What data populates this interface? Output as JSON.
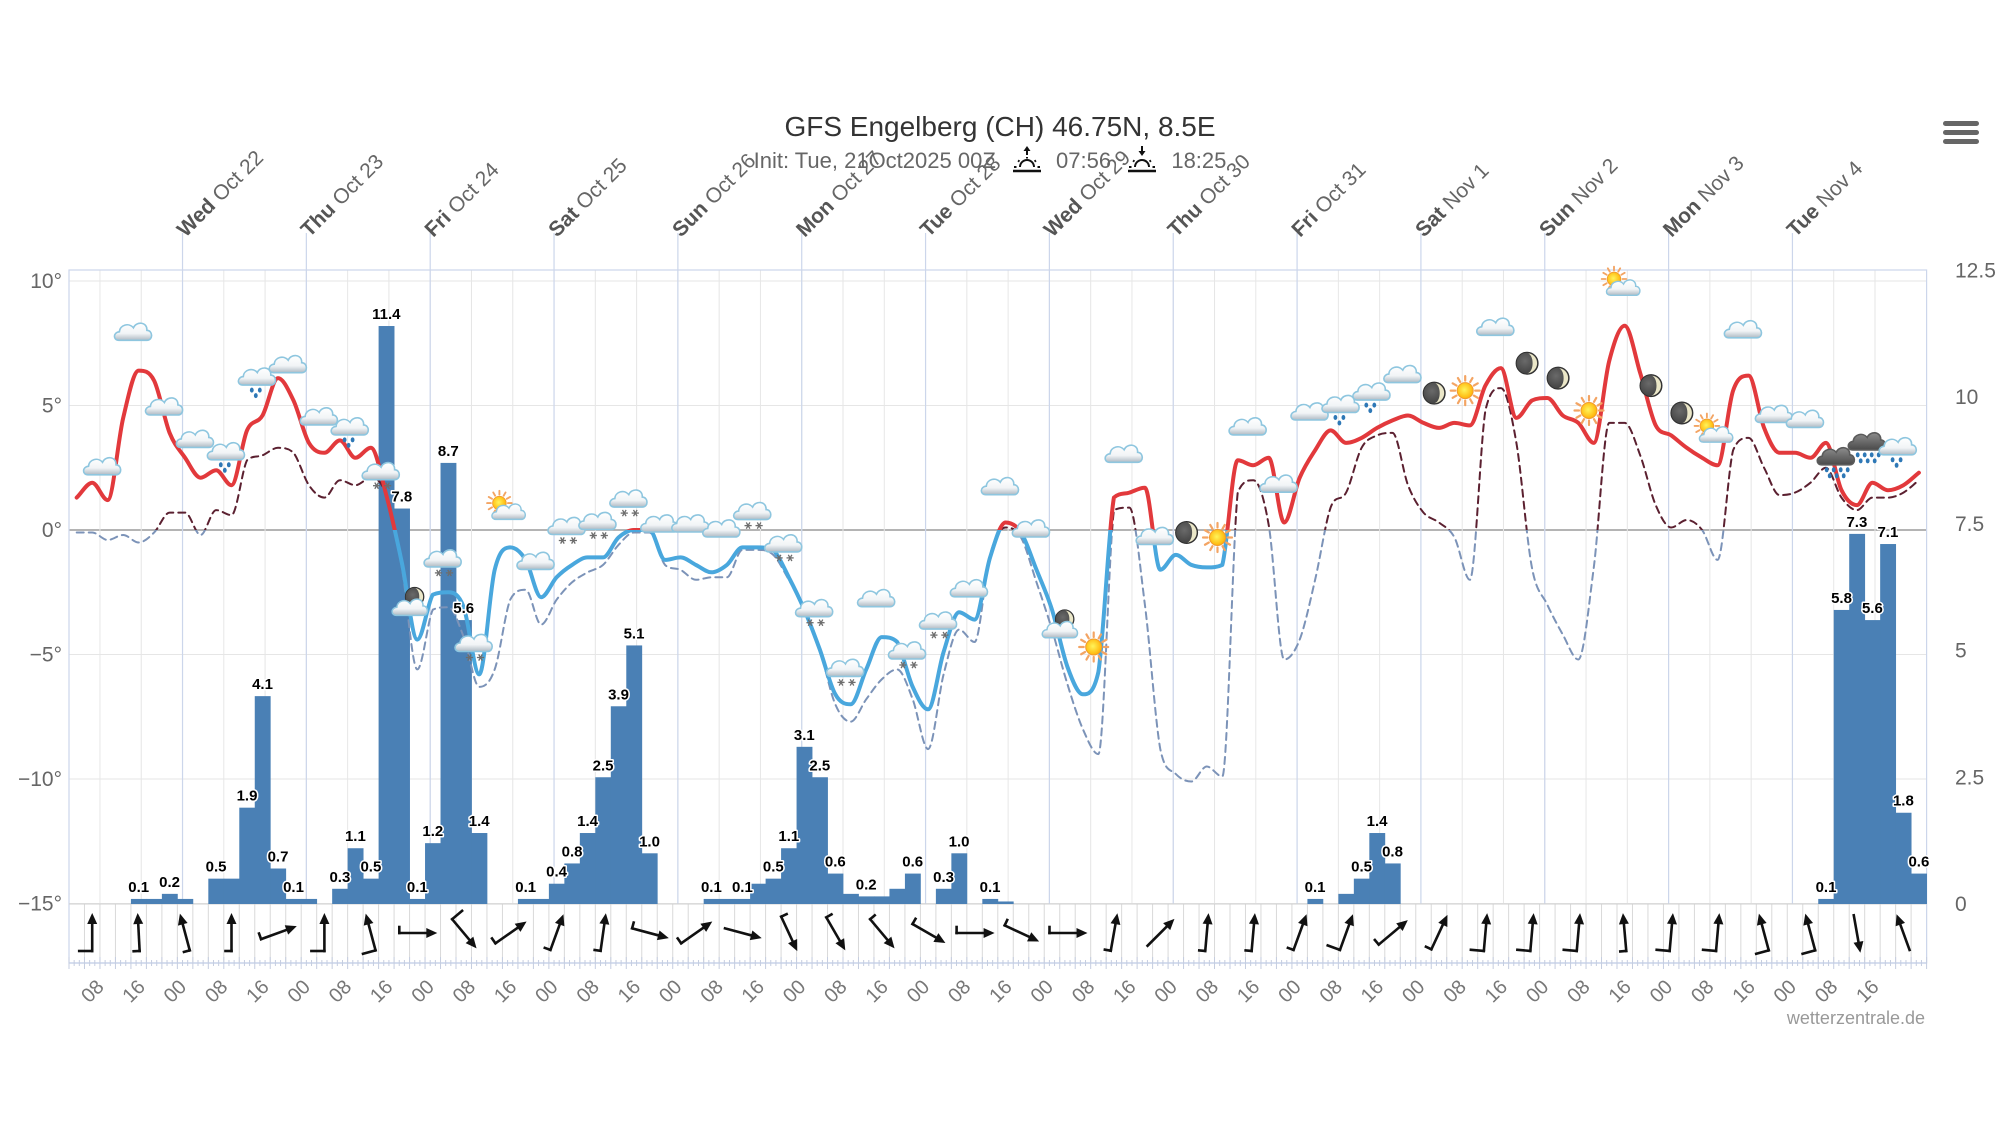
{
  "header": {
    "title": "GFS Engelberg (CH) 46.75N, 8.5E",
    "init": "Init: Tue, 21Oct2025 00Z",
    "sunrise_time": "07:56",
    "sunset_time": "18:25",
    "sunrise_icon": "sunrise-icon",
    "sunset_icon": "sunset-icon"
  },
  "menu": {
    "icon": "hamburger-menu-icon"
  },
  "credits": "wetterzentrale.de",
  "chart_data": {
    "type": "line",
    "title": "GFS Engelberg (CH) 46.75N, 8.5E",
    "legend": "none",
    "grid": true,
    "x": {
      "start": "Oct 21 02:00",
      "step_hours": 3,
      "count": 120,
      "tick_first_hour": 6,
      "tick_step_hours": 8,
      "tick_labels": [
        "08",
        "16",
        "00",
        "08",
        "16",
        "00",
        "08",
        "16",
        "00",
        "08",
        "16",
        "00",
        "08",
        "16",
        "00",
        "08",
        "16",
        "00",
        "08",
        "16",
        "00",
        "08",
        "16",
        "00",
        "08",
        "16",
        "00",
        "08",
        "16",
        "00",
        "08",
        "16",
        "00",
        "08",
        "16",
        "00",
        "08",
        "16",
        "00",
        "08",
        "16",
        "00",
        "08",
        "16"
      ],
      "day_first_hour": 22,
      "day_labels": [
        {
          "day": "Wed",
          "date": "Oct 22"
        },
        {
          "day": "Thu",
          "date": "Oct 23"
        },
        {
          "day": "Fri",
          "date": "Oct 24"
        },
        {
          "day": "Sat",
          "date": "Oct 25"
        },
        {
          "day": "Sun",
          "date": "Oct 26"
        },
        {
          "day": "Mon",
          "date": "Oct 27"
        },
        {
          "day": "Tue",
          "date": "Oct 28"
        },
        {
          "day": "Wed",
          "date": "Oct 29"
        },
        {
          "day": "Thu",
          "date": "Oct 30"
        },
        {
          "day": "Fri",
          "date": "Oct 31"
        },
        {
          "day": "Sat",
          "date": "Nov 1"
        },
        {
          "day": "Sun",
          "date": "Nov 2"
        },
        {
          "day": "Mon",
          "date": "Nov 3"
        },
        {
          "day": "Tue",
          "date": "Nov 4"
        }
      ]
    },
    "y_left": {
      "range": [
        -15,
        10
      ],
      "step": 5,
      "unit": "°C",
      "tick_labels": [
        "10°",
        "5°",
        "0°",
        "−5°",
        "−10°",
        "−15°"
      ]
    },
    "y_right": {
      "range": [
        0,
        12.5
      ],
      "step": 2.5,
      "unit": "mm",
      "tick_labels": [
        "12.5",
        "10",
        "7.5",
        "5",
        "2.5",
        "0"
      ]
    },
    "series": [
      {
        "id": "temperature-solid",
        "type": "line",
        "axis": "left",
        "style": "solid",
        "color_above_zero": "#e2393c",
        "color_below_zero": "#49a7dd",
        "values": [
          1.3,
          1.9,
          1.2,
          4.5,
          6.4,
          6.0,
          3.9,
          2.9,
          2.1,
          2.4,
          1.8,
          4.0,
          4.6,
          6.1,
          5.2,
          3.5,
          3.1,
          3.6,
          2.9,
          3.3,
          1.4,
          -1.3,
          -4.4,
          -2.6,
          -2.5,
          -3.1,
          -5.8,
          -1.6,
          -0.7,
          -1.2,
          -2.7,
          -1.9,
          -1.4,
          -1.1,
          -1.1,
          -0.3,
          0.0,
          0.0,
          -1.2,
          -1.1,
          -1.4,
          -1.7,
          -1.4,
          -0.7,
          -0.7,
          -0.8,
          -1.9,
          -3.2,
          -4.8,
          -6.6,
          -7.0,
          -5.6,
          -4.3,
          -4.5,
          -6.3,
          -7.2,
          -4.9,
          -3.3,
          -3.6,
          -1.1,
          0.3,
          -0.1,
          -1.6,
          -3.2,
          -5.5,
          -6.6,
          -5.7,
          1.3,
          1.5,
          1.7,
          -1.6,
          -1.0,
          -1.4,
          -1.5,
          -1.4,
          2.8,
          2.6,
          2.9,
          0.3,
          2.1,
          3.2,
          4.0,
          3.5,
          3.7,
          4.1,
          4.4,
          4.6,
          4.3,
          4.1,
          4.3,
          4.2,
          5.8,
          6.5,
          4.5,
          5.2,
          5.3,
          4.6,
          4.3,
          3.5,
          6.8,
          8.2,
          6.3,
          4.2,
          3.8,
          3.3,
          2.9,
          2.6,
          5.6,
          6.2,
          4.1,
          3.1,
          3.1,
          2.9,
          3.5,
          1.6,
          1.0,
          1.9,
          1.6,
          1.8,
          2.3
        ]
      },
      {
        "id": "temperature-dashed",
        "type": "line",
        "axis": "left",
        "style": "dashed",
        "color_above_zero": "#5b2030",
        "color_below_zero": "#7c93b8",
        "values": [
          -0.1,
          -0.1,
          -0.4,
          -0.2,
          -0.5,
          -0.1,
          0.7,
          0.7,
          -0.2,
          0.8,
          0.6,
          2.8,
          3.0,
          3.3,
          3.1,
          1.8,
          1.3,
          2.0,
          1.8,
          2.1,
          1.4,
          -1.5,
          -5.6,
          -3.2,
          -3.1,
          -4.3,
          -6.3,
          -5.6,
          -2.8,
          -2.4,
          -3.8,
          -2.8,
          -2.1,
          -1.7,
          -1.4,
          -0.6,
          -0.1,
          -0.1,
          -1.4,
          -1.6,
          -2.0,
          -1.9,
          -1.9,
          -0.8,
          -0.8,
          -1.0,
          -2.0,
          -3.1,
          -4.8,
          -7.0,
          -7.7,
          -6.8,
          -6.0,
          -5.6,
          -6.8,
          -8.8,
          -5.8,
          -4.0,
          -4.5,
          -1.0,
          0.1,
          -0.3,
          -2.1,
          -4.0,
          -6.2,
          -8.0,
          -9.0,
          0.8,
          0.9,
          -3.0,
          -8.8,
          -9.8,
          -10.1,
          -9.5,
          -9.9,
          1.5,
          2.0,
          0.2,
          -5.2,
          -4.4,
          -2.0,
          0.9,
          1.5,
          3.3,
          3.8,
          3.9,
          1.8,
          0.7,
          0.3,
          -0.3,
          -2.0,
          4.8,
          5.7,
          3.5,
          -1.5,
          -3.0,
          -4.2,
          -5.2,
          -1.5,
          4.3,
          4.3,
          3.0,
          1.0,
          0.1,
          0.4,
          0.0,
          -1.2,
          3.2,
          3.7,
          2.5,
          1.4,
          1.5,
          1.9,
          2.5,
          1.3,
          0.8,
          1.3,
          1.3,
          1.5,
          2.0
        ]
      },
      {
        "id": "precipitation",
        "type": "bar",
        "axis": "right",
        "color": "#4a80b5",
        "values": [
          0,
          0,
          0,
          0,
          0.1,
          0.1,
          0.2,
          0.1,
          0,
          0.5,
          0.5,
          1.9,
          4.1,
          0.7,
          0.1,
          0.1,
          0,
          0.3,
          1.1,
          0.5,
          11.4,
          7.8,
          0.1,
          1.2,
          8.7,
          5.6,
          1.4,
          0,
          0,
          0.1,
          0.1,
          0.4,
          0.8,
          1.4,
          2.5,
          3.9,
          5.1,
          1.0,
          0,
          0,
          0,
          0.1,
          0.1,
          0.1,
          0.4,
          0.5,
          1.1,
          3.1,
          2.5,
          0.6,
          0.2,
          0.15,
          0.15,
          0.3,
          0.6,
          0,
          0.3,
          1.0,
          0,
          0.1,
          0.05,
          0,
          0,
          0,
          0,
          0,
          0,
          0,
          0,
          0,
          0,
          0,
          0,
          0,
          0,
          0,
          0,
          0,
          0,
          0,
          0.1,
          0,
          0.2,
          0.5,
          1.4,
          0.8,
          0,
          0,
          0,
          0,
          0,
          0,
          0,
          0,
          0,
          0,
          0,
          0,
          0,
          0,
          0,
          0,
          0,
          0,
          0,
          0,
          0,
          0,
          0,
          0,
          0,
          0,
          0,
          0.1,
          5.8,
          7.3,
          5.6,
          7.1,
          1.8,
          0.6
        ],
        "labels": [
          {
            "index": 4,
            "text": "0.1"
          },
          {
            "index": 6,
            "text": "0.2"
          },
          {
            "index": 9,
            "text": "0.5"
          },
          {
            "index": 11,
            "text": "1.9"
          },
          {
            "index": 12,
            "text": "4.1"
          },
          {
            "index": 13,
            "text": "0.7"
          },
          {
            "index": 14,
            "text": "0.1"
          },
          {
            "index": 17,
            "text": "0.3"
          },
          {
            "index": 18,
            "text": "1.1"
          },
          {
            "index": 19,
            "text": "0.5"
          },
          {
            "index": 20,
            "text": "11.4"
          },
          {
            "index": 21,
            "text": "7.8"
          },
          {
            "index": 22,
            "text": "0.1"
          },
          {
            "index": 23,
            "text": "1.2"
          },
          {
            "index": 24,
            "text": "8.7"
          },
          {
            "index": 25,
            "text": "5.6"
          },
          {
            "index": 26,
            "text": "1.4"
          },
          {
            "index": 29,
            "text": "0.1"
          },
          {
            "index": 31,
            "text": "0.4"
          },
          {
            "index": 32,
            "text": "0.8"
          },
          {
            "index": 33,
            "text": "1.4"
          },
          {
            "index": 34,
            "text": "2.5"
          },
          {
            "index": 35,
            "text": "3.9"
          },
          {
            "index": 36,
            "text": "5.1"
          },
          {
            "index": 37,
            "text": "1.0"
          },
          {
            "index": 41,
            "text": "0.1"
          },
          {
            "index": 43,
            "text": "0.1"
          },
          {
            "index": 45,
            "text": "0.5"
          },
          {
            "index": 46,
            "text": "1.1"
          },
          {
            "index": 47,
            "text": "3.1"
          },
          {
            "index": 48,
            "text": "2.5"
          },
          {
            "index": 49,
            "text": "0.6"
          },
          {
            "index": 51,
            "text": "0.2"
          },
          {
            "index": 54,
            "text": "0.6"
          },
          {
            "index": 56,
            "text": "0.3"
          },
          {
            "index": 57,
            "text": "1.0"
          },
          {
            "index": 59,
            "text": "0.1"
          },
          {
            "index": 80,
            "text": "0.1"
          },
          {
            "index": 83,
            "text": "0.5"
          },
          {
            "index": 84,
            "text": "1.4"
          },
          {
            "index": 85,
            "text": "0.8"
          },
          {
            "index": 113,
            "text": "0.1"
          },
          {
            "index": 114,
            "text": "5.8"
          },
          {
            "index": 115,
            "text": "7.3"
          },
          {
            "index": 116,
            "text": "5.6"
          },
          {
            "index": 117,
            "text": "7.1"
          },
          {
            "index": 118,
            "text": "1.8"
          },
          {
            "index": 119,
            "text": "0.6"
          }
        ]
      }
    ],
    "wind": {
      "first_index": 1,
      "every_n_steps": 3,
      "arrows": [
        {
          "deg": 0,
          "barb": "full"
        },
        {
          "deg": -3,
          "barb": "half"
        },
        {
          "deg": -15,
          "barb": "half"
        },
        {
          "deg": 0,
          "barb": "half"
        },
        {
          "deg": 70,
          "barb": "half"
        },
        {
          "deg": 0,
          "barb": "full"
        },
        {
          "deg": -15,
          "barb": "full"
        },
        {
          "deg": 90,
          "barb": "half"
        },
        {
          "deg": 140,
          "barb": "full"
        },
        {
          "deg": 55,
          "barb": "half"
        },
        {
          "deg": 20,
          "barb": "half"
        },
        {
          "deg": 8,
          "barb": "half"
        },
        {
          "deg": 105,
          "barb": "half"
        },
        {
          "deg": 55,
          "barb": "half"
        },
        {
          "deg": 105,
          "barb": "none"
        },
        {
          "deg": 155,
          "barb": "half"
        },
        {
          "deg": 150,
          "barb": "half"
        },
        {
          "deg": 140,
          "barb": "half"
        },
        {
          "deg": 120,
          "barb": "half"
        },
        {
          "deg": 90,
          "barb": "half"
        },
        {
          "deg": 115,
          "barb": "half"
        },
        {
          "deg": 90,
          "barb": "half"
        },
        {
          "deg": 10,
          "barb": "half"
        },
        {
          "deg": 45,
          "barb": "none"
        },
        {
          "deg": 5,
          "barb": "half"
        },
        {
          "deg": 5,
          "barb": "half"
        },
        {
          "deg": 20,
          "barb": "half"
        },
        {
          "deg": 20,
          "barb": "full"
        },
        {
          "deg": 50,
          "barb": "half"
        },
        {
          "deg": 25,
          "barb": "half"
        },
        {
          "deg": 5,
          "barb": "full"
        },
        {
          "deg": 5,
          "barb": "full"
        },
        {
          "deg": 5,
          "barb": "full"
        },
        {
          "deg": -5,
          "barb": "half"
        },
        {
          "deg": 5,
          "barb": "full"
        },
        {
          "deg": 5,
          "barb": "full"
        },
        {
          "deg": -15,
          "barb": "full"
        },
        {
          "deg": -15,
          "barb": "full"
        },
        {
          "deg": 170,
          "barb": "none"
        },
        {
          "deg": -20,
          "barb": "none"
        }
      ]
    },
    "weather_icons": {
      "first_hour": 6,
      "step_hours": 6,
      "items": [
        {
          "icon": "cloud",
          "temp": 2.5
        },
        {
          "icon": "cloud",
          "temp": 7.9
        },
        {
          "icon": "cloud",
          "temp": 4.9
        },
        {
          "icon": "cloud",
          "temp": 3.6
        },
        {
          "icon": "cloud-rain",
          "temp": 3.1
        },
        {
          "icon": "cloud-rain",
          "temp": 6.1
        },
        {
          "icon": "cloud",
          "temp": 6.6
        },
        {
          "icon": "cloud",
          "temp": 4.5
        },
        {
          "icon": "cloud-rain",
          "temp": 4.1
        },
        {
          "icon": "cloud-snow",
          "temp": 2.3
        },
        {
          "icon": "moon-cloud",
          "temp": -3.0
        },
        {
          "icon": "cloud-snow",
          "temp": -1.2
        },
        {
          "icon": "cloud-snow",
          "temp": -4.6
        },
        {
          "icon": "sun-cloud",
          "temp": 0.8
        },
        {
          "icon": "cloud",
          "temp": -1.3
        },
        {
          "icon": "cloud-snow",
          "temp": 0.1
        },
        {
          "icon": "cloud-snow",
          "temp": 0.3
        },
        {
          "icon": "cloud-snow",
          "temp": 1.2
        },
        {
          "icon": "cloud",
          "temp": 0.2
        },
        {
          "icon": "cloud",
          "temp": 0.2
        },
        {
          "icon": "cloud",
          "temp": 0.0
        },
        {
          "icon": "cloud-snow",
          "temp": 0.7
        },
        {
          "icon": "cloud-snow",
          "temp": -0.6
        },
        {
          "icon": "cloud-snow",
          "temp": -3.2
        },
        {
          "icon": "cloud-snow",
          "temp": -5.6
        },
        {
          "icon": "cloud",
          "temp": -2.8
        },
        {
          "icon": "cloud-snow",
          "temp": -4.9
        },
        {
          "icon": "cloud-snow",
          "temp": -3.7
        },
        {
          "icon": "cloud",
          "temp": -2.4
        },
        {
          "icon": "cloud",
          "temp": 1.7
        },
        {
          "icon": "cloud",
          "temp": 0.0
        },
        {
          "icon": "moon-cloud",
          "temp": -3.9
        },
        {
          "icon": "sun",
          "temp": -4.7
        },
        {
          "icon": "cloud",
          "temp": 3.0
        },
        {
          "icon": "cloud",
          "temp": -0.3
        },
        {
          "icon": "moon",
          "temp": -0.1
        },
        {
          "icon": "sun",
          "temp": -0.3
        },
        {
          "icon": "cloud",
          "temp": 4.1
        },
        {
          "icon": "cloud",
          "temp": 1.8
        },
        {
          "icon": "cloud",
          "temp": 4.7
        },
        {
          "icon": "cloud-rain",
          "temp": 5.0
        },
        {
          "icon": "cloud-rain",
          "temp": 5.5
        },
        {
          "icon": "cloud",
          "temp": 6.2
        },
        {
          "icon": "moon",
          "temp": 5.5
        },
        {
          "icon": "sun",
          "temp": 5.6
        },
        {
          "icon": "cloud",
          "temp": 8.1
        },
        {
          "icon": "moon",
          "temp": 6.7
        },
        {
          "icon": "moon",
          "temp": 6.1
        },
        {
          "icon": "sun",
          "temp": 4.8
        },
        {
          "icon": "sun-cloud",
          "temp": 9.8
        },
        {
          "icon": "moon",
          "temp": 5.8
        },
        {
          "icon": "moon",
          "temp": 4.7
        },
        {
          "icon": "sun-cloud",
          "temp": 3.9
        },
        {
          "icon": "cloud",
          "temp": 8.0
        },
        {
          "icon": "cloud",
          "temp": 4.6
        },
        {
          "icon": "cloud",
          "temp": 4.4
        },
        {
          "icon": "dark-cloud-rain",
          "temp": 2.9
        },
        {
          "icon": "dark-cloud-rain",
          "temp": 3.5
        },
        {
          "icon": "cloud-rain",
          "temp": 3.3
        }
      ]
    }
  }
}
